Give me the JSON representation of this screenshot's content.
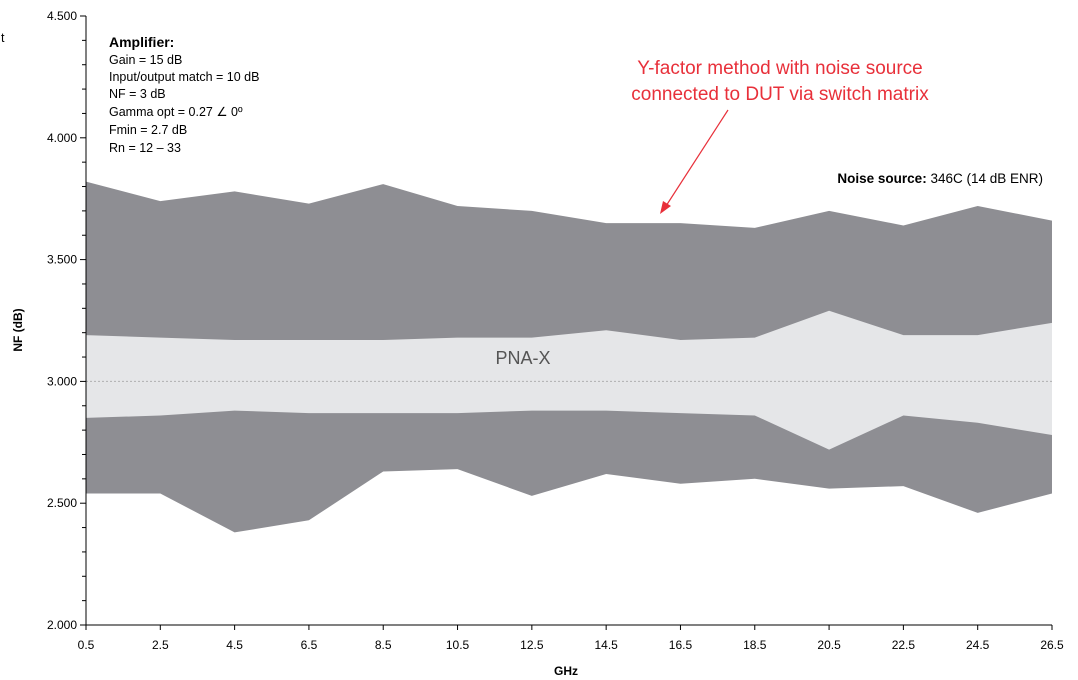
{
  "chart_data": {
    "type": "area",
    "xlabel": "GHz",
    "ylabel": "NF (dB)",
    "x": [
      0.5,
      2.5,
      4.5,
      6.5,
      8.5,
      10.5,
      12.5,
      14.5,
      16.5,
      18.5,
      20.5,
      22.5,
      24.5,
      26.5
    ],
    "x_tick_labels": [
      "0.5",
      "2.5",
      "4.5",
      "6.5",
      "8.5",
      "10.5",
      "12.5",
      "14.5",
      "16.5",
      "18.5",
      "20.5",
      "22.5",
      "24.5",
      "26.5"
    ],
    "y_ticks": [
      2.0,
      2.5,
      3.0,
      3.5,
      4.0,
      4.5
    ],
    "y_tick_labels": [
      "2.000",
      "2.500",
      "3.000",
      "3.500",
      "4.000",
      "4.500"
    ],
    "ylim": [
      2.0,
      4.5
    ],
    "xlim": [
      0.5,
      26.5
    ],
    "grid": false,
    "reference_line": 3.0,
    "series": [
      {
        "name": "Y-factor method with noise source connected to DUT via switch matrix",
        "upper": [
          3.82,
          3.74,
          3.78,
          3.73,
          3.81,
          3.72,
          3.7,
          3.65,
          3.65,
          3.63,
          3.7,
          3.64,
          3.72,
          3.66
        ],
        "lower": [
          2.54,
          2.54,
          2.38,
          2.43,
          2.63,
          2.64,
          2.53,
          2.62,
          2.58,
          2.6,
          2.56,
          2.57,
          2.46,
          2.54
        ],
        "color": "#8e8e93"
      },
      {
        "name": "PNA-X",
        "upper": [
          3.19,
          3.18,
          3.17,
          3.17,
          3.17,
          3.18,
          3.18,
          3.21,
          3.17,
          3.18,
          3.29,
          3.19,
          3.19,
          3.24
        ],
        "lower": [
          2.85,
          2.86,
          2.88,
          2.87,
          2.87,
          2.87,
          2.88,
          2.88,
          2.87,
          2.86,
          2.72,
          2.86,
          2.83,
          2.78
        ],
        "color": "#e5e6e8"
      }
    ],
    "annotations": {
      "amplifier_title": "Amplifier:",
      "amplifier_lines": [
        "Gain = 15 dB",
        "Input/output match = 10 dB",
        "NF = 3 dB",
        "Gamma opt = 0.27 ∠ 0º",
        "Fmin = 2.7 dB",
        "Rn = 12 – 33"
      ],
      "yfactor_line1": "Y-factor method with noise source",
      "yfactor_line2": "connected to DUT via switch matrix",
      "pna_label": "PNA-X",
      "noise_source_bold": "Noise source:",
      "noise_source_value": " 346C (14 dB ENR)",
      "edge_fragment": "t"
    },
    "colors": {
      "outer_band": "#8e8e93",
      "inner_band": "#e5e6e8",
      "annotation_red": "#e8303a",
      "arrow_red": "#e8303a"
    }
  }
}
